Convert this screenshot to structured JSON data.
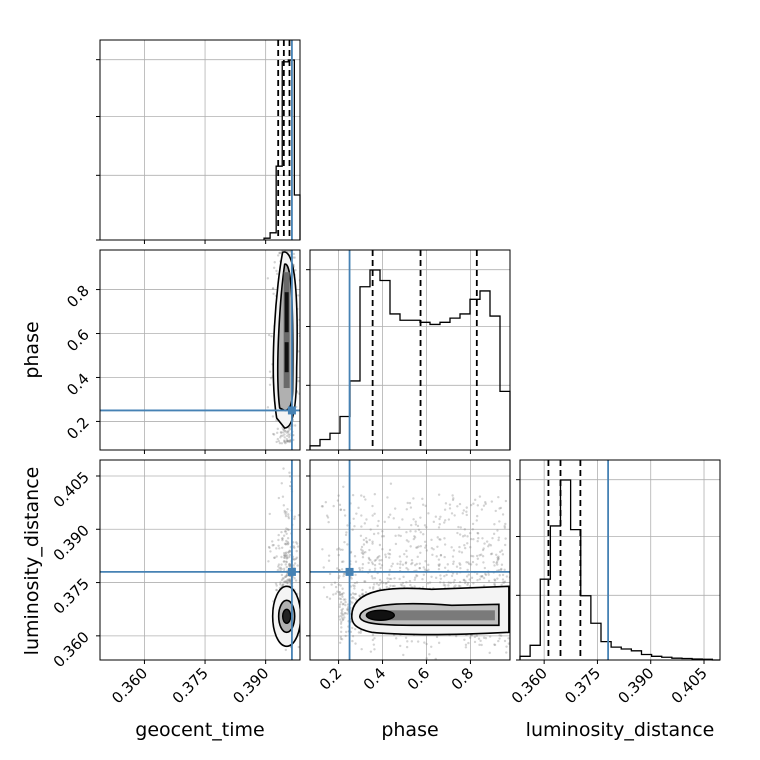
{
  "chart_data": {
    "type": "corner",
    "parameters": [
      "geocent_time",
      "phase",
      "luminosity_distance"
    ],
    "axis_labels": {
      "bottom": [
        "geocent_time",
        "phase",
        "luminosity_distance"
      ],
      "left": [
        "phase",
        "luminosity_distance"
      ]
    },
    "truths": {
      "geocent_time": 0.3965,
      "phase": 0.25,
      "luminosity_distance": 0.378
    },
    "truth_color": "#4682b4",
    "grid": true,
    "ranges": {
      "geocent_time": [
        0.349,
        0.3985
      ],
      "phase": [
        0.07,
        0.98
      ],
      "luminosity_distance": [
        0.3532,
        0.4095
      ]
    },
    "ticks": {
      "geocent_time": [
        0.36,
        0.375,
        0.39
      ],
      "geocent_time_labels": [
        "0.360",
        "0.375",
        "0.390"
      ],
      "phase": [
        0.2,
        0.4,
        0.6,
        0.8
      ],
      "phase_labels": [
        "0.2",
        "0.4",
        "0.6",
        "0.8"
      ],
      "luminosity_distance": [
        0.36,
        0.375,
        0.39,
        0.405
      ],
      "luminosity_distance_labels": [
        "0.360",
        "0.375",
        "0.390",
        "0.405"
      ]
    },
    "histograms": {
      "geocent_time": {
        "bin_edges": [
          0.3896,
          0.3911,
          0.3926,
          0.3941,
          0.3956,
          0.3971,
          0.3986
        ],
        "counts": [
          0.01,
          0.04,
          0.41,
          0.99,
          1.0,
          0.25
        ],
        "quantiles": [
          0.3931,
          0.3945,
          0.3959
        ]
      },
      "phase": {
        "bin_edges": [
          0.07,
          0.1155,
          0.161,
          0.2065,
          0.252,
          0.2975,
          0.343,
          0.3885,
          0.434,
          0.4795,
          0.525,
          0.5705,
          0.616,
          0.6615,
          0.707,
          0.7525,
          0.798,
          0.8435,
          0.889,
          0.9345,
          0.98
        ],
        "counts": [
          0.02,
          0.05,
          0.08,
          0.16,
          0.33,
          0.78,
          0.86,
          0.81,
          0.65,
          0.62,
          0.62,
          0.61,
          0.6,
          0.61,
          0.63,
          0.65,
          0.72,
          0.76,
          0.64,
          0.28
        ],
        "quantiles": [
          0.355,
          0.573,
          0.829
        ]
      },
      "luminosity_distance": {
        "bin_edges": [
          0.3532,
          0.35605,
          0.3589,
          0.36175,
          0.3646,
          0.36745,
          0.3703,
          0.37315,
          0.376,
          0.37885,
          0.3817,
          0.38455,
          0.3874,
          0.39025,
          0.3931,
          0.39595,
          0.3988,
          0.40165,
          0.4045,
          0.40735,
          0.4102
        ],
        "counts": [
          0.02,
          0.08,
          0.44,
          0.73,
          0.98,
          0.71,
          0.35,
          0.2,
          0.1,
          0.07,
          0.06,
          0.05,
          0.03,
          0.02,
          0.015,
          0.01,
          0.008,
          0.005,
          0.004,
          0.0
        ],
        "quantiles": [
          0.3612,
          0.3646,
          0.3702
        ]
      }
    },
    "joint_panels": [
      {
        "x": "geocent_time",
        "y": "phase",
        "mode": "2d-density",
        "core_x": 0.3952,
        "core_y_range": [
          0.3,
          0.92
        ],
        "n_scatter_outliers": 400
      },
      {
        "x": "geocent_time",
        "y": "luminosity_distance",
        "mode": "2d-density",
        "core_x": 0.3952,
        "core_y": 0.3655,
        "n_scatter_outliers": 400
      },
      {
        "x": "phase",
        "y": "luminosity_distance",
        "mode": "2d-density",
        "core_y": 0.3655,
        "core_x_range": [
          0.2,
          0.97
        ],
        "n_scatter_outliers": 900
      }
    ]
  }
}
